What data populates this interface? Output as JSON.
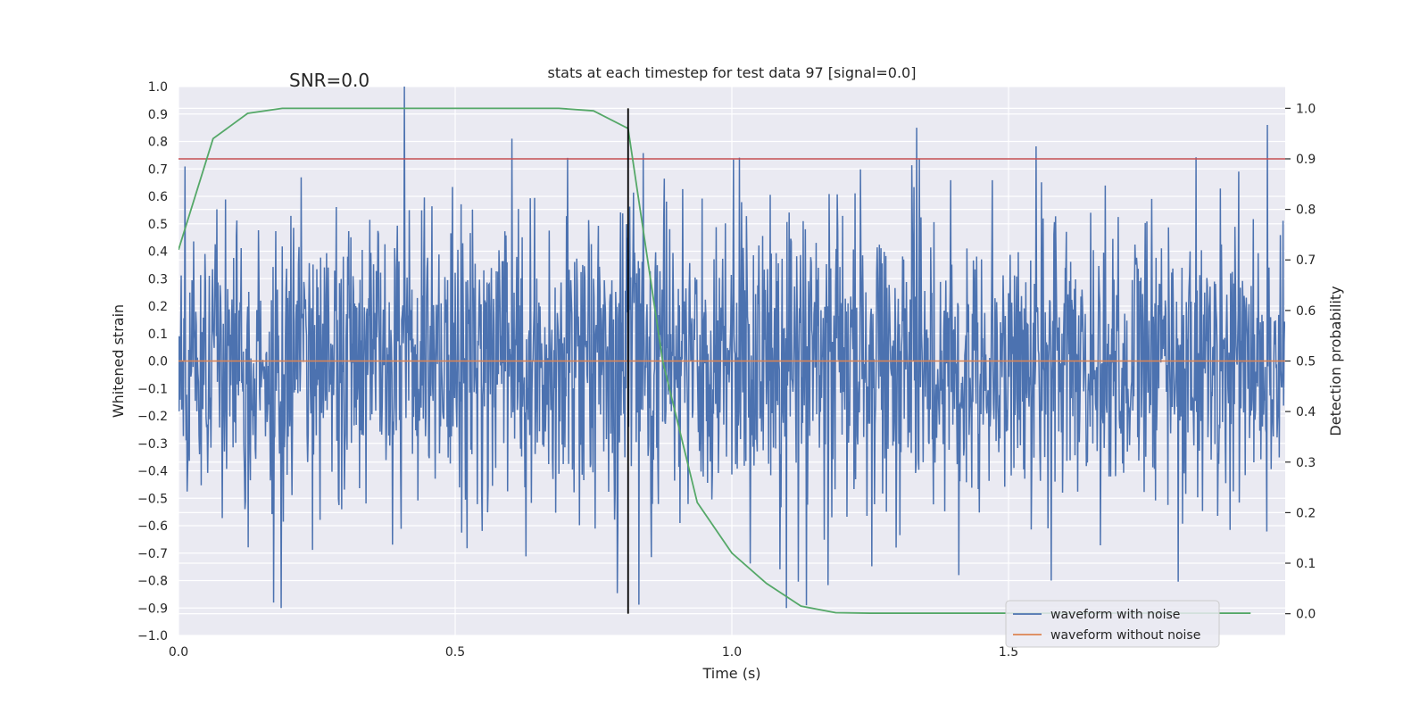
{
  "chart_data": {
    "type": "line",
    "title": "stats at each timestep for test data 97 [signal=0.0]",
    "xlabel": "Time (s)",
    "ylabel": "Whitened strain",
    "y2label": "Detection probability",
    "xlim": [
      0.0,
      2.0
    ],
    "ylim": [
      -1.0,
      1.0
    ],
    "y2lim": [
      -0.043,
      1.043
    ],
    "xticks": [
      0.0,
      0.5,
      1.0,
      1.5
    ],
    "xtick_labels": [
      "0.0",
      "0.5",
      "1.0",
      "1.5"
    ],
    "yticks": [
      -1.0,
      -0.9,
      -0.8,
      -0.7,
      -0.6,
      -0.5,
      -0.4,
      -0.3,
      -0.2,
      -0.1,
      0.0,
      0.1,
      0.2,
      0.3,
      0.4,
      0.5,
      0.6,
      0.7,
      0.8,
      0.9,
      1.0
    ],
    "ytick_labels": [
      "−1.0",
      "−0.9",
      "−0.8",
      "−0.7",
      "−0.6",
      "−0.5",
      "−0.4",
      "−0.3",
      "−0.2",
      "−0.1",
      "0.0",
      "0.1",
      "0.2",
      "0.3",
      "0.4",
      "0.5",
      "0.6",
      "0.7",
      "0.8",
      "0.9",
      "1.0"
    ],
    "y2ticks": [
      0.0,
      0.1,
      0.2,
      0.3,
      0.4,
      0.5,
      0.6,
      0.7,
      0.8,
      0.9,
      1.0
    ],
    "y2tick_labels": [
      "0.0",
      "0.1",
      "0.2",
      "0.3",
      "0.4",
      "0.5",
      "0.6",
      "0.7",
      "0.8",
      "0.9",
      "1.0"
    ],
    "annotation": "SNR=0.0",
    "annotation_pos": [
      0.2,
      1.0
    ],
    "grid": true,
    "legend_position": "lower-right",
    "series": [
      {
        "name": "waveform with noise",
        "color": "#4c72b0",
        "axis": "left",
        "kind": "noise",
        "n_samples": 2048,
        "peak": 1.0,
        "trough": -0.88
      },
      {
        "name": "waveform without noise",
        "color": "#dd8452",
        "axis": "left",
        "x": [
          0.0,
          2.0
        ],
        "y": [
          0.0,
          0.0
        ]
      },
      {
        "name": "detection probability",
        "color": "#55a868",
        "axis": "right",
        "x": [
          0.0,
          0.0625,
          0.125,
          0.1875,
          0.25,
          0.3125,
          0.375,
          0.4375,
          0.5,
          0.5625,
          0.625,
          0.6875,
          0.75,
          0.8125,
          0.875,
          0.9375,
          1.0,
          1.0625,
          1.125,
          1.1875,
          1.25,
          1.3125,
          1.375,
          1.4375,
          1.5,
          1.5625,
          1.625,
          1.6875,
          1.75,
          1.8125,
          1.875,
          1.9375
        ],
        "y": [
          0.72,
          0.94,
          0.99,
          1.0,
          1.0,
          1.0,
          1.0,
          1.0,
          1.0,
          1.0,
          1.0,
          1.0,
          0.995,
          0.96,
          0.5,
          0.22,
          0.12,
          0.06,
          0.015,
          0.002,
          0.001,
          0.001,
          0.001,
          0.001,
          0.001,
          0.001,
          0.001,
          0.001,
          0.001,
          0.001,
          0.001,
          0.001
        ]
      }
    ],
    "threshold": {
      "axis": "right",
      "value": 0.9,
      "color": "#c44e52"
    },
    "marker_line": {
      "x": 0.8125,
      "y2_from": 0.0,
      "y2_to": 1.0,
      "color": "#000000"
    }
  }
}
